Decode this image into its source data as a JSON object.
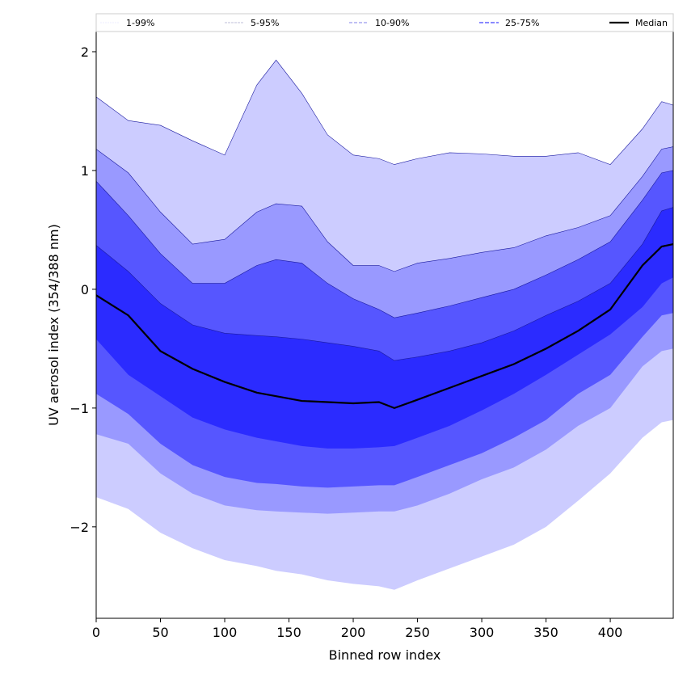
{
  "chart_data": {
    "type": "area",
    "title": "",
    "xlabel": "Binned row index",
    "ylabel": "UV aerosol index (354/388 nm)",
    "xlim": [
      0,
      449
    ],
    "ylim": [
      -2.77,
      2.17
    ],
    "xticks": [
      "0",
      "50",
      "100",
      "150",
      "200",
      "250",
      "300",
      "350",
      "400"
    ],
    "yticks": [
      "2",
      "1",
      "0",
      "−1",
      "−2"
    ],
    "xtick_values": [
      0,
      50,
      100,
      150,
      200,
      250,
      300,
      350,
      400
    ],
    "ytick_values": [
      2,
      1,
      0,
      -1,
      -2
    ],
    "legend_placement": "top",
    "legend": [
      {
        "label": "1-99%",
        "color": "#ccccff"
      },
      {
        "label": "5-95%",
        "color": "#9999ff"
      },
      {
        "label": "10-90%",
        "color": "#5656ff"
      },
      {
        "label": "25-75%",
        "color": "#2b2bff"
      },
      {
        "label": "Median",
        "color": "#000000"
      }
    ],
    "x": [
      0,
      25,
      50,
      75,
      100,
      125,
      140,
      160,
      180,
      200,
      220,
      232,
      250,
      275,
      300,
      325,
      350,
      375,
      400,
      425,
      440,
      449
    ],
    "series": [
      {
        "name": "p1",
        "values": [
          -1.75,
          -1.85,
          -2.05,
          -2.18,
          -2.28,
          -2.33,
          -2.37,
          -2.4,
          -2.45,
          -2.48,
          -2.5,
          -2.53,
          -2.45,
          -2.35,
          -2.25,
          -2.15,
          -2.0,
          -1.78,
          -1.55,
          -1.25,
          -1.12,
          -1.1
        ]
      },
      {
        "name": "p5",
        "values": [
          -1.22,
          -1.3,
          -1.55,
          -1.72,
          -1.82,
          -1.86,
          -1.87,
          -1.88,
          -1.89,
          -1.88,
          -1.87,
          -1.87,
          -1.82,
          -1.72,
          -1.6,
          -1.5,
          -1.35,
          -1.15,
          -1.0,
          -0.65,
          -0.52,
          -0.5
        ]
      },
      {
        "name": "p10",
        "values": [
          -0.88,
          -1.05,
          -1.3,
          -1.48,
          -1.58,
          -1.63,
          -1.64,
          -1.66,
          -1.67,
          -1.66,
          -1.65,
          -1.65,
          -1.58,
          -1.48,
          -1.38,
          -1.25,
          -1.1,
          -0.88,
          -0.72,
          -0.4,
          -0.22,
          -0.2
        ]
      },
      {
        "name": "p25",
        "values": [
          -0.42,
          -0.72,
          -0.9,
          -1.08,
          -1.18,
          -1.25,
          -1.28,
          -1.32,
          -1.34,
          -1.34,
          -1.33,
          -1.32,
          -1.25,
          -1.15,
          -1.02,
          -0.88,
          -0.72,
          -0.55,
          -0.38,
          -0.15,
          0.05,
          0.1
        ]
      },
      {
        "name": "Median",
        "values": [
          -0.05,
          -0.22,
          -0.52,
          -0.67,
          -0.78,
          -0.87,
          -0.9,
          -0.94,
          -0.95,
          -0.96,
          -0.95,
          -1.0,
          -0.93,
          -0.83,
          -0.73,
          -0.63,
          -0.5,
          -0.35,
          -0.17,
          0.2,
          0.36,
          0.38
        ]
      },
      {
        "name": "p75",
        "values": [
          0.37,
          0.15,
          -0.12,
          -0.3,
          -0.37,
          -0.39,
          -0.4,
          -0.42,
          -0.45,
          -0.48,
          -0.52,
          -0.6,
          -0.57,
          -0.52,
          -0.45,
          -0.35,
          -0.22,
          -0.1,
          0.05,
          0.38,
          0.66,
          0.69
        ]
      },
      {
        "name": "p90",
        "values": [
          0.91,
          0.62,
          0.3,
          0.05,
          0.05,
          0.2,
          0.25,
          0.22,
          0.05,
          -0.08,
          -0.17,
          -0.24,
          -0.2,
          -0.14,
          -0.07,
          0.0,
          0.12,
          0.25,
          0.4,
          0.75,
          0.98,
          1.0
        ]
      },
      {
        "name": "p95",
        "values": [
          1.18,
          0.98,
          0.65,
          0.38,
          0.42,
          0.65,
          0.72,
          0.7,
          0.4,
          0.2,
          0.2,
          0.15,
          0.22,
          0.26,
          0.31,
          0.35,
          0.45,
          0.52,
          0.62,
          0.95,
          1.18,
          1.2
        ]
      },
      {
        "name": "p99",
        "values": [
          1.62,
          1.42,
          1.38,
          1.25,
          1.13,
          1.72,
          1.93,
          1.65,
          1.3,
          1.13,
          1.1,
          1.05,
          1.1,
          1.15,
          1.14,
          1.12,
          1.12,
          1.15,
          1.05,
          1.35,
          1.58,
          1.55
        ]
      }
    ]
  }
}
